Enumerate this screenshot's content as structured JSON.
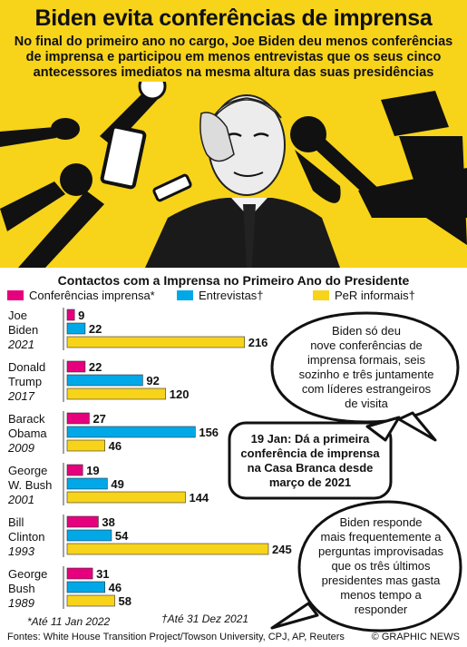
{
  "title": "Biden evita conferências de imprensa",
  "subtitle": "No final do primeiro ano no cargo, Joe Biden deu menos conferências de imprensa e participou em menos entrevistas que os seus cinco antecessores imediatos na mesma altura das suas presidências",
  "chart_data": {
    "type": "bar",
    "orientation": "horizontal",
    "title": "Contactos com a Imprensa no Primeiro Ano do Presidente",
    "categories": [
      {
        "name_lines": [
          "Joe",
          "Biden"
        ],
        "year": "2021"
      },
      {
        "name_lines": [
          "Donald",
          "Trump"
        ],
        "year": "2017"
      },
      {
        "name_lines": [
          "Barack",
          "Obama"
        ],
        "year": "2009"
      },
      {
        "name_lines": [
          "George",
          "W. Bush"
        ],
        "year": "2001"
      },
      {
        "name_lines": [
          "Bill",
          "Clinton"
        ],
        "year": "1993"
      },
      {
        "name_lines": [
          "George",
          "Bush"
        ],
        "year": "1989"
      }
    ],
    "series": [
      {
        "name": "Conferências imprensa*",
        "color": "#e6007e",
        "values": [
          9,
          22,
          27,
          19,
          38,
          31
        ]
      },
      {
        "name": "Entrevistas†",
        "color": "#00a8e8",
        "values": [
          22,
          92,
          156,
          49,
          54,
          46
        ]
      },
      {
        "name": "PeR informais†",
        "color": "#f7d31a",
        "values": [
          216,
          120,
          46,
          144,
          245,
          58
        ]
      }
    ],
    "xlim": [
      0,
      245
    ],
    "legend_position": "top",
    "grid": false
  },
  "bubbles": {
    "b1": [
      "Biden só deu",
      "nove conferências de",
      "imprensa formais, seis",
      "sozinho e três juntamente",
      "com líderes estrangeiros",
      "de visita"
    ],
    "b2": [
      "19 Jan: Dá a primeira",
      "conferência de imprensa",
      "na Casa Branca desde",
      "março de 2021"
    ],
    "b3": [
      "Biden responde",
      "mais frequentemente a",
      "perguntas improvisadas",
      "que os três últimos",
      "presidentes mas gasta",
      "menos tempo a",
      "responder"
    ]
  },
  "notes": {
    "asterisk": "*Até 11 Jan 2022",
    "dagger": "†Até 31 Dez 2021"
  },
  "sources": "Fontes: White House Transition Project/Towson University, CPJ, AP, Reuters",
  "credit": "© GRAPHIC NEWS",
  "colors": {
    "yellow": "#f7d31a",
    "magenta": "#e6007e",
    "cyan": "#00a8e8"
  }
}
